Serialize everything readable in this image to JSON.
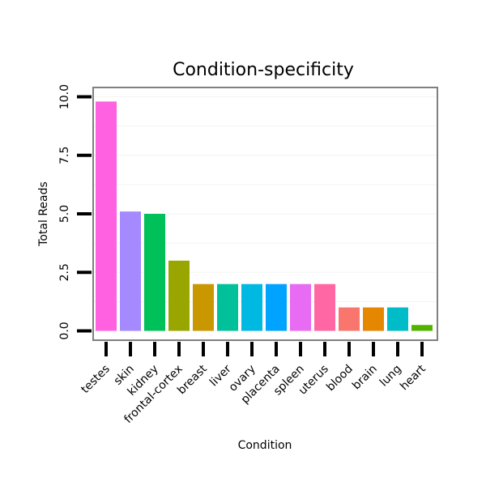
{
  "chart_data": {
    "type": "bar",
    "title": "Condition-specificity",
    "xlabel": "Condition",
    "ylabel": "Total Reads",
    "categories": [
      "testes",
      "skin",
      "kidney",
      "frontal-cortex",
      "breast",
      "liver",
      "ovary",
      "placenta",
      "spleen",
      "uterus",
      "blood",
      "brain",
      "lung",
      "heart"
    ],
    "values": [
      9.8,
      5.1,
      5.0,
      3.0,
      2.0,
      2.0,
      2.0,
      2.0,
      2.0,
      2.0,
      1.0,
      1.0,
      1.0,
      0.25
    ],
    "colors": [
      "#FF61E1",
      "#A58AFF",
      "#00C05A",
      "#99A600",
      "#C99800",
      "#00C19A",
      "#00B9E3",
      "#00A3FF",
      "#E76BF3",
      "#FF67A4",
      "#F8766D",
      "#E58700",
      "#00BBC8",
      "#53B400"
    ],
    "ylim": [
      -0.4,
      10.4
    ],
    "yticks": [
      0.0,
      2.5,
      5.0,
      7.5,
      10.0
    ],
    "ytick_labels": [
      "0.0",
      "2.5",
      "5.0",
      "7.5",
      "10.0"
    ],
    "grid": true,
    "legend": "none"
  }
}
